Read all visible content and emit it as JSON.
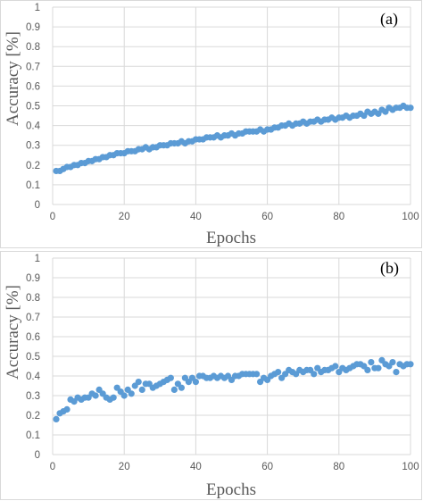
{
  "colors": {
    "marker": "#5b9bd5",
    "grid": "#d9d9d9",
    "text": "#595959"
  },
  "chart_data": [
    {
      "type": "scatter",
      "panel_label": "(a)",
      "xlabel": "Epochs",
      "ylabel": "Accuracy [%]",
      "xlim": [
        0,
        100
      ],
      "ylim": [
        0,
        1
      ],
      "x_ticks": [
        "0",
        "20",
        "40",
        "60",
        "80",
        "100"
      ],
      "y_ticks": [
        "0",
        "0.1",
        "0.2",
        "0.3",
        "0.4",
        "0.5",
        "0.6",
        "0.7",
        "0.8",
        "0.9",
        "1"
      ],
      "grid": true,
      "series": [
        {
          "x": [
            1,
            2,
            3,
            4,
            5,
            6,
            7,
            8,
            9,
            10,
            11,
            12,
            13,
            14,
            15,
            16,
            17,
            18,
            19,
            20,
            21,
            22,
            23,
            24,
            25,
            26,
            27,
            28,
            29,
            30,
            31,
            32,
            33,
            34,
            35,
            36,
            37,
            38,
            39,
            40,
            41,
            42,
            43,
            44,
            45,
            46,
            47,
            48,
            49,
            50,
            51,
            52,
            53,
            54,
            55,
            56,
            57,
            58,
            59,
            60,
            61,
            62,
            63,
            64,
            65,
            66,
            67,
            68,
            69,
            70,
            71,
            72,
            73,
            74,
            75,
            76,
            77,
            78,
            79,
            80,
            81,
            82,
            83,
            84,
            85,
            86,
            87,
            88,
            89,
            90,
            91,
            92,
            93,
            94,
            95,
            96,
            97,
            98,
            99,
            100
          ],
          "y": [
            0.17,
            0.17,
            0.18,
            0.19,
            0.19,
            0.2,
            0.2,
            0.21,
            0.21,
            0.22,
            0.22,
            0.23,
            0.23,
            0.24,
            0.24,
            0.25,
            0.25,
            0.26,
            0.26,
            0.26,
            0.27,
            0.27,
            0.27,
            0.28,
            0.28,
            0.29,
            0.28,
            0.29,
            0.29,
            0.3,
            0.3,
            0.3,
            0.31,
            0.31,
            0.31,
            0.32,
            0.31,
            0.32,
            0.32,
            0.33,
            0.33,
            0.33,
            0.34,
            0.34,
            0.34,
            0.35,
            0.34,
            0.35,
            0.35,
            0.36,
            0.35,
            0.36,
            0.36,
            0.37,
            0.37,
            0.37,
            0.37,
            0.38,
            0.37,
            0.38,
            0.38,
            0.39,
            0.39,
            0.4,
            0.4,
            0.41,
            0.4,
            0.41,
            0.41,
            0.42,
            0.41,
            0.42,
            0.42,
            0.43,
            0.42,
            0.43,
            0.43,
            0.44,
            0.43,
            0.44,
            0.44,
            0.45,
            0.44,
            0.45,
            0.45,
            0.46,
            0.45,
            0.47,
            0.46,
            0.47,
            0.46,
            0.48,
            0.47,
            0.49,
            0.48,
            0.49,
            0.49,
            0.5,
            0.49,
            0.49
          ]
        }
      ]
    },
    {
      "type": "scatter",
      "panel_label": "(b)",
      "xlabel": "Epochs",
      "ylabel": "Accuracy [%]",
      "xlim": [
        0,
        100
      ],
      "ylim": [
        0,
        1
      ],
      "x_ticks": [
        "0",
        "20",
        "40",
        "60",
        "80",
        "100"
      ],
      "y_ticks": [
        "0",
        "0.1",
        "0.2",
        "0.3",
        "0.4",
        "0.5",
        "0.6",
        "0.7",
        "0.8",
        "0.9",
        "1"
      ],
      "grid": true,
      "series": [
        {
          "x": [
            1,
            2,
            3,
            4,
            5,
            6,
            7,
            8,
            9,
            10,
            11,
            12,
            13,
            14,
            15,
            16,
            17,
            18,
            19,
            20,
            21,
            22,
            23,
            24,
            25,
            26,
            27,
            28,
            29,
            30,
            31,
            32,
            33,
            34,
            35,
            36,
            37,
            38,
            39,
            40,
            41,
            42,
            43,
            44,
            45,
            46,
            47,
            48,
            49,
            50,
            51,
            52,
            53,
            54,
            55,
            56,
            57,
            58,
            59,
            60,
            61,
            62,
            63,
            64,
            65,
            66,
            67,
            68,
            69,
            70,
            71,
            72,
            73,
            74,
            75,
            76,
            77,
            78,
            79,
            80,
            81,
            82,
            83,
            84,
            85,
            86,
            87,
            88,
            89,
            90,
            91,
            92,
            93,
            94,
            95,
            96,
            97,
            98,
            99,
            100
          ],
          "y": [
            0.18,
            0.21,
            0.22,
            0.23,
            0.28,
            0.27,
            0.29,
            0.28,
            0.29,
            0.29,
            0.31,
            0.3,
            0.33,
            0.31,
            0.29,
            0.28,
            0.29,
            0.34,
            0.32,
            0.3,
            0.33,
            0.31,
            0.35,
            0.37,
            0.33,
            0.36,
            0.36,
            0.34,
            0.35,
            0.36,
            0.37,
            0.38,
            0.39,
            0.33,
            0.36,
            0.34,
            0.39,
            0.37,
            0.39,
            0.37,
            0.4,
            0.4,
            0.39,
            0.39,
            0.4,
            0.39,
            0.4,
            0.39,
            0.4,
            0.38,
            0.4,
            0.4,
            0.41,
            0.41,
            0.41,
            0.41,
            0.41,
            0.37,
            0.39,
            0.38,
            0.4,
            0.41,
            0.42,
            0.39,
            0.41,
            0.43,
            0.42,
            0.41,
            0.43,
            0.42,
            0.43,
            0.43,
            0.41,
            0.44,
            0.42,
            0.43,
            0.43,
            0.44,
            0.45,
            0.42,
            0.44,
            0.43,
            0.44,
            0.45,
            0.46,
            0.46,
            0.45,
            0.43,
            0.47,
            0.44,
            0.44,
            0.48,
            0.46,
            0.45,
            0.47,
            0.42,
            0.46,
            0.45,
            0.46,
            0.46
          ]
        }
      ]
    }
  ]
}
